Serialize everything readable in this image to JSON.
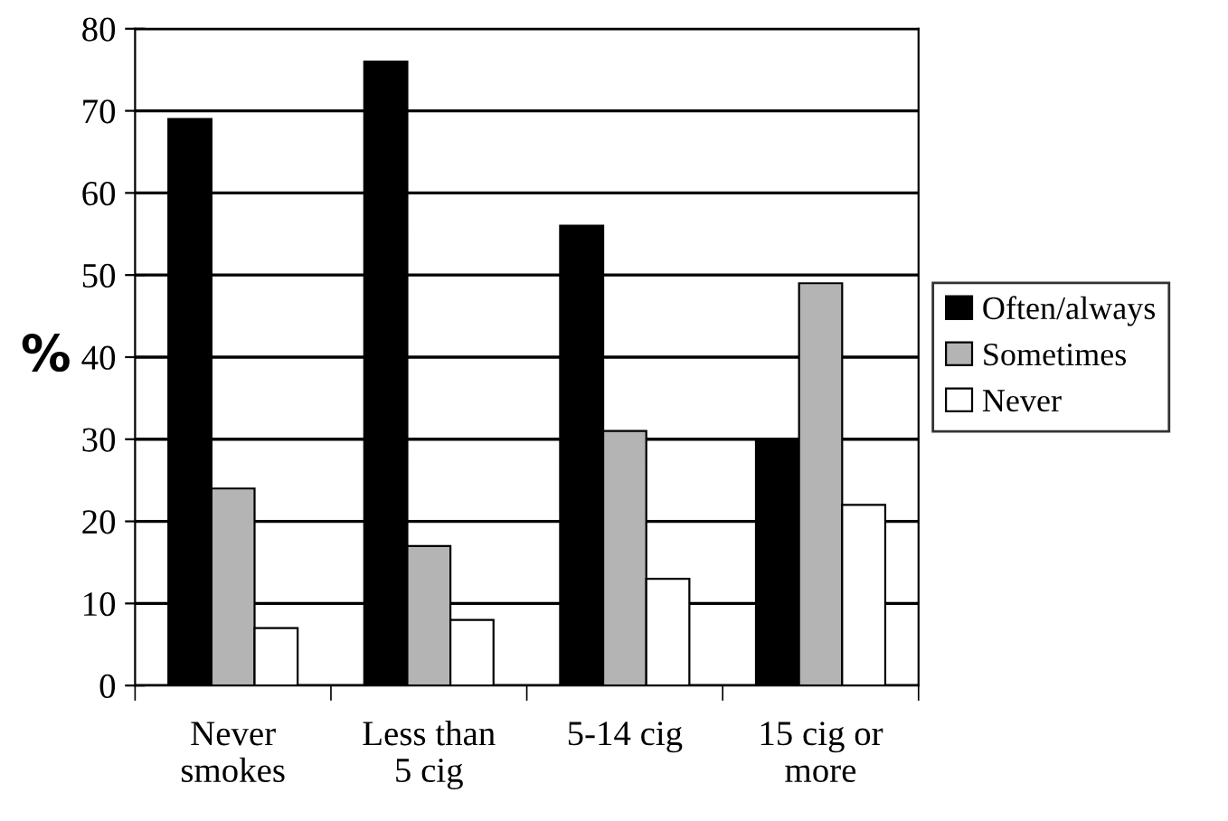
{
  "chart_data": {
    "type": "bar",
    "ylabel": "%",
    "categories": [
      "Never\nsmokes",
      "Less than\n5 cig",
      "5-14 cig",
      "15 cig or\nmore"
    ],
    "series": [
      {
        "name": "Often/always",
        "color": "#000000",
        "values": [
          69,
          76,
          56,
          30
        ]
      },
      {
        "name": "Sometimes",
        "color": "#b4b4b4",
        "values": [
          24,
          17,
          31,
          49
        ]
      },
      {
        "name": "Never",
        "color": "#ffffff",
        "values": [
          7,
          8,
          13,
          22
        ]
      }
    ],
    "ylim": [
      0,
      80
    ],
    "yticks": [
      0,
      10,
      20,
      30,
      40,
      50,
      60,
      70,
      80
    ],
    "grid": "y",
    "legend": "right"
  }
}
